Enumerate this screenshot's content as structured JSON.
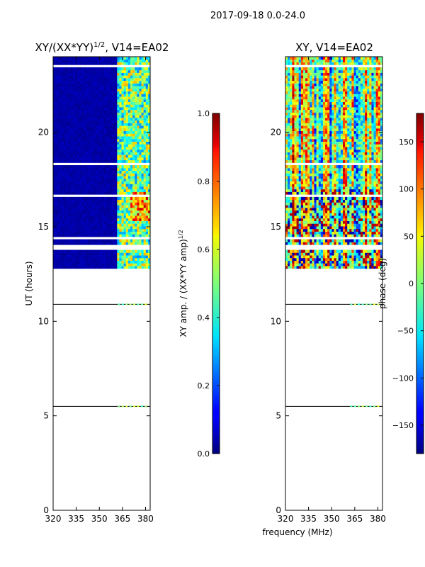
{
  "figure": {
    "suptitle": "2017-09-18 0.0-24.0",
    "xlabel": "frequency (MHz)"
  },
  "chart_data": [
    {
      "type": "heatmap",
      "title_main": "XY/(XX*YY)",
      "title_sup": "1/2",
      "title_tail": ", V14=EA02",
      "xlabel": "",
      "ylabel": "UT (hours)",
      "xlim": [
        320,
        383
      ],
      "ylim": [
        0,
        24
      ],
      "xticks": [
        320,
        335,
        350,
        365,
        380
      ],
      "yticks": [
        0,
        5,
        10,
        15,
        20
      ],
      "colorbar": {
        "label": "XY amp. / (XX*YY amp)",
        "label_sup": "1/2",
        "range": [
          0.0,
          1.0
        ],
        "ticks": [
          "0.0",
          "0.2",
          "0.4",
          "0.6",
          "0.8",
          "1.0"
        ]
      },
      "data_row_hours": [
        5.5,
        10.9,
        [
          12.8,
          24.0
        ]
      ],
      "description_values": {
        "low_band_value": 0.02,
        "high_band_value_range": [
          0.3,
          0.85
        ]
      }
    },
    {
      "type": "heatmap",
      "title_main": "XY, V14=EA02",
      "xlabel": "frequency (MHz)",
      "ylabel": "",
      "xlim": [
        320,
        383
      ],
      "ylim": [
        0,
        24
      ],
      "xticks": [
        320,
        335,
        350,
        365,
        380
      ],
      "yticks": [
        0,
        5,
        10,
        15,
        20
      ],
      "colorbar": {
        "label": "phase (deg)",
        "range": [
          -180,
          180
        ],
        "ticks": [
          "−150",
          "−100",
          "−50",
          "0",
          "50",
          "100",
          "150"
        ]
      },
      "data_row_hours": [
        5.5,
        10.9,
        [
          12.8,
          24.0
        ]
      ]
    }
  ]
}
